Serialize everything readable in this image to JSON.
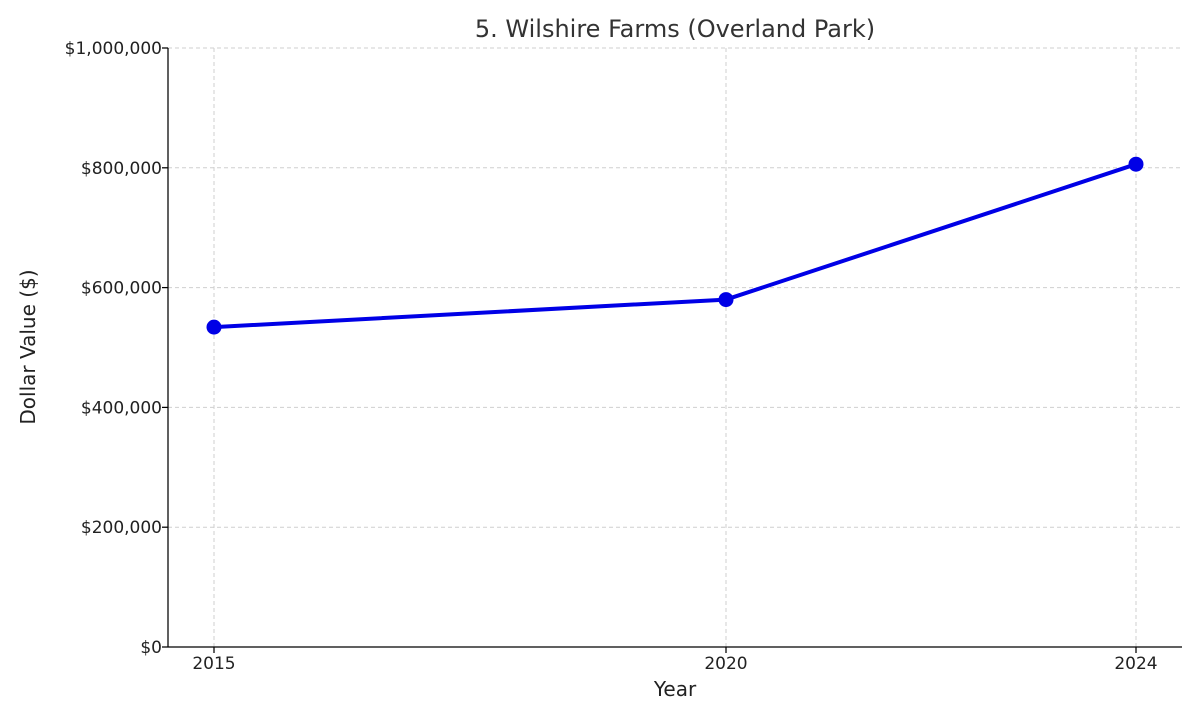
{
  "chart_data": {
    "type": "line",
    "title": "5. Wilshire Farms (Overland Park)",
    "xlabel": "Year",
    "ylabel": "Dollar Value ($)",
    "x": [
      2015,
      2020,
      2024
    ],
    "xticks": [
      "2015",
      "2020",
      "2024"
    ],
    "ylim": [
      0,
      1000000
    ],
    "yticks": [
      0,
      200000,
      400000,
      600000,
      800000,
      1000000
    ],
    "ytick_labels": [
      "$0",
      "$200,000",
      "$400,000",
      "$600,000",
      "$800,000",
      "$1,000,000"
    ],
    "series": [
      {
        "values": [
          534000,
          580000,
          806000
        ],
        "color": "#0000e6"
      }
    ],
    "grid": true,
    "marker": "circle"
  }
}
